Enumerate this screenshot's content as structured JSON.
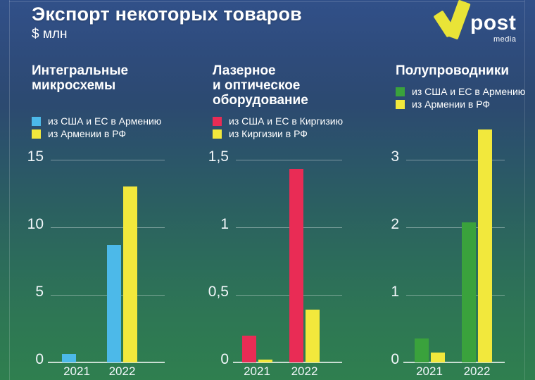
{
  "header": {
    "title": "Экспорт некоторых товаров",
    "subtitle": "$ млн"
  },
  "logo": {
    "word": "post",
    "sub": "media",
    "mark_color": "#e9e437"
  },
  "colors": {
    "background_top": "#315089",
    "background_bottom": "#2f7f4f",
    "blue_bar": "#4cb9e9",
    "yellow_bar": "#f2e83c",
    "red_bar": "#e92c55",
    "green_bar": "#3aa23c"
  },
  "chart_data": [
    {
      "type": "bar",
      "title": "Интегральные микросхемы",
      "title_lines": [
        "Интегральные",
        "микросхемы"
      ],
      "categories": [
        "2021",
        "2022"
      ],
      "series": [
        {
          "name": "из США и ЕС в Армению",
          "color": "#4cb9e9",
          "values": [
            0.6,
            8.7
          ]
        },
        {
          "name": "из Армении в РФ",
          "color": "#f2e83c",
          "values": [
            0,
            13
          ]
        }
      ],
      "ticks": [
        0,
        5,
        10,
        15
      ],
      "tick_labels": [
        "0",
        "5",
        "10",
        "15"
      ],
      "ylim": [
        0,
        15
      ],
      "grid": true,
      "legend_position": "top"
    },
    {
      "type": "bar",
      "title": "Лазерное и оптическое оборудование",
      "title_lines": [
        "Лазерное",
        "и оптическое",
        "оборудование"
      ],
      "categories": [
        "2021",
        "2022"
      ],
      "series": [
        {
          "name": "из США и ЕС в Киргизию",
          "color": "#e92c55",
          "values": [
            0.2,
            1.43
          ]
        },
        {
          "name": "из Киргизии в РФ",
          "color": "#f2e83c",
          "values": [
            0.02,
            0.39
          ]
        }
      ],
      "ticks": [
        0,
        0.5,
        1,
        1.5
      ],
      "tick_labels": [
        "0",
        "0,5",
        "1",
        "1,5"
      ],
      "ylim": [
        0,
        1.5
      ],
      "grid": true,
      "legend_position": "top"
    },
    {
      "type": "bar",
      "title": "Полупроводники",
      "title_lines": [
        "Полупроводники"
      ],
      "categories": [
        "2021",
        "2022"
      ],
      "series": [
        {
          "name": "из США и ЕС в Армению",
          "color": "#3aa23c",
          "values": [
            0.35,
            2.07
          ]
        },
        {
          "name": "из Армении в РФ",
          "color": "#f2e83c",
          "values": [
            0.15,
            3.45
          ]
        }
      ],
      "ticks": [
        0,
        1,
        2,
        3
      ],
      "tick_labels": [
        "0",
        "1",
        "2",
        "3"
      ],
      "ylim": [
        0,
        3.5
      ],
      "grid": true,
      "legend_position": "top"
    }
  ]
}
